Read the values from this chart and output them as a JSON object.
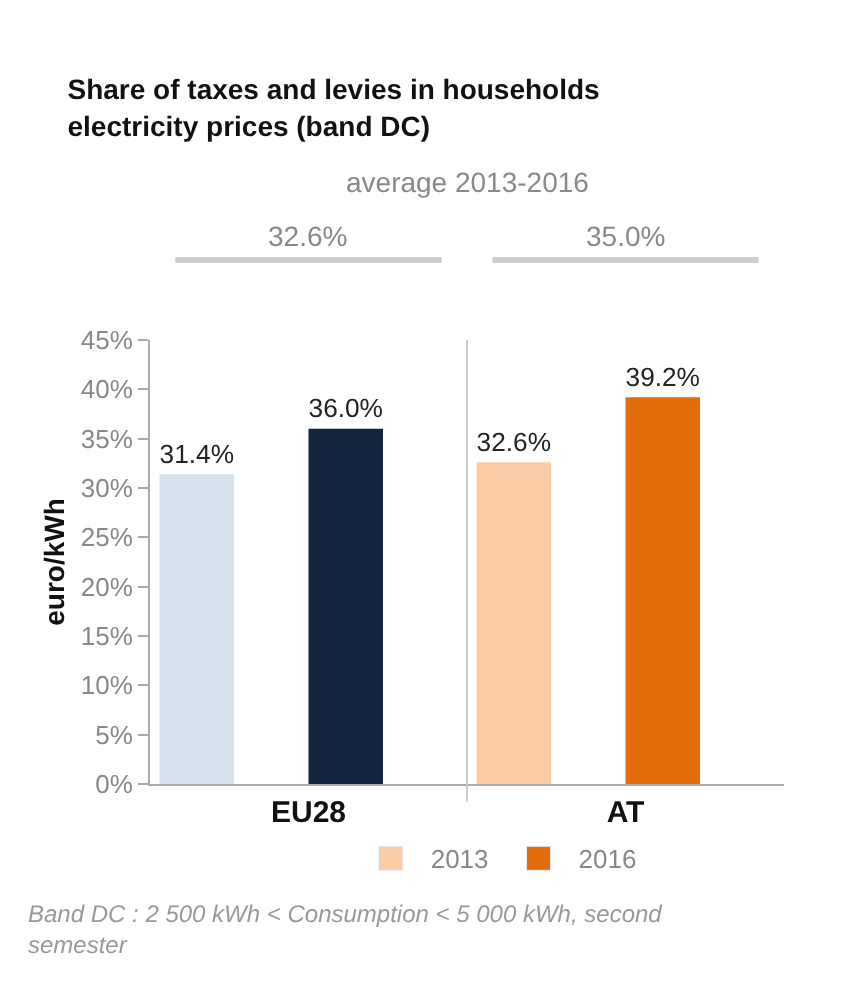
{
  "chart_data": {
    "type": "bar",
    "title": "Share of taxes and levies in households\nelectricity prices (band DC)",
    "ylabel": "euro/kWh",
    "categories": [
      "EU28",
      "AT"
    ],
    "series": [
      {
        "name": "2013",
        "color": "#f9cba6",
        "colors": [
          "#d6e1ee",
          "#f9cba6"
        ],
        "values": [
          31.4,
          32.6
        ],
        "value_labels": [
          "31.4%",
          "32.6%"
        ]
      },
      {
        "name": "2016",
        "color": "#e36c0a",
        "colors": [
          "#13243e",
          "#e36c0a"
        ],
        "values": [
          36.0,
          39.2
        ],
        "value_labels": [
          "36.0%",
          "39.2%"
        ]
      }
    ],
    "ylim": [
      0,
      45
    ],
    "yticks": [
      {
        "value": 0,
        "label": "0%"
      },
      {
        "value": 5,
        "label": "5%"
      },
      {
        "value": 10,
        "label": "10%"
      },
      {
        "value": 15,
        "label": "15%"
      },
      {
        "value": 20,
        "label": "20%"
      },
      {
        "value": 25,
        "label": "25%"
      },
      {
        "value": 30,
        "label": "30%"
      },
      {
        "value": 35,
        "label": "35%"
      },
      {
        "value": 40,
        "label": "40%"
      },
      {
        "value": 45,
        "label": "45%"
      }
    ],
    "annotations": [
      "average 2013-2016",
      "32.6%",
      "35.0%",
      "Band DC : 2 500 kWh < Consumption < 5 000 kWh, second semester"
    ],
    "legend": "bottom",
    "grid": false
  }
}
